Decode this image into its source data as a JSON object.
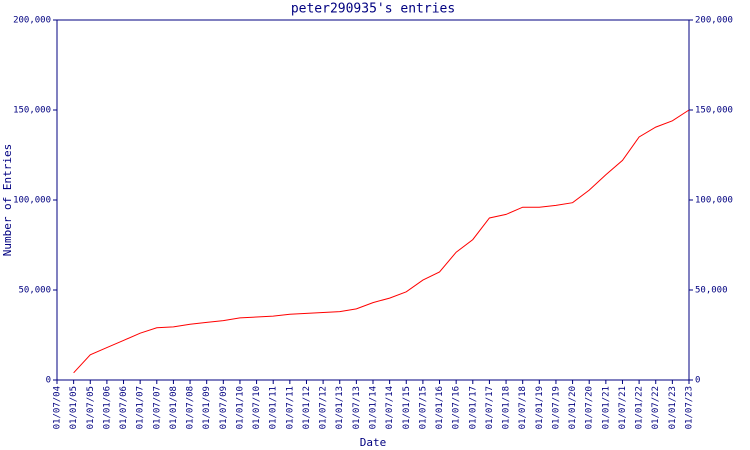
{
  "chart_data": {
    "type": "line",
    "title": "peter290935's entries",
    "xlabel": "Date",
    "ylabel": "Number of Entries",
    "categories": [
      "01/07/04",
      "01/01/05",
      "01/07/05",
      "01/01/06",
      "01/07/06",
      "01/01/07",
      "01/07/07",
      "01/01/08",
      "01/07/08",
      "01/01/09",
      "01/07/09",
      "01/01/10",
      "01/07/10",
      "01/01/11",
      "01/07/11",
      "01/01/12",
      "01/07/12",
      "01/01/13",
      "01/07/13",
      "01/01/14",
      "01/07/14",
      "01/01/15",
      "01/07/15",
      "01/01/16",
      "01/07/16",
      "01/01/17",
      "01/07/17",
      "01/01/18",
      "01/07/18",
      "01/01/19",
      "01/07/19",
      "01/01/20",
      "01/07/20",
      "01/01/21",
      "01/07/21",
      "01/01/22",
      "01/07/22",
      "01/01/23",
      "01/07/23"
    ],
    "series": [
      {
        "name": "Entries",
        "color": "#ff0000",
        "values": [
          null,
          4000,
          14000,
          18000,
          22000,
          26000,
          29000,
          29500,
          31000,
          32000,
          33000,
          34500,
          35000,
          35500,
          36500,
          37000,
          37500,
          38000,
          39500,
          43000,
          45500,
          49000,
          55500,
          60000,
          71000,
          78000,
          90000,
          92000,
          96000,
          96000,
          97000,
          98500,
          105500,
          114000,
          122000,
          135000,
          140500,
          144000,
          150000
        ]
      }
    ],
    "ylim": [
      0,
      200000
    ],
    "yticks": [
      0,
      {
        "value": 50000,
        "label": "50,000"
      },
      {
        "value": 100000,
        "label": "100,000"
      },
      {
        "value": 150000,
        "label": "150,000"
      },
      {
        "value": 200000,
        "label": "200,000"
      }
    ],
    "axis_color": "#000080"
  }
}
